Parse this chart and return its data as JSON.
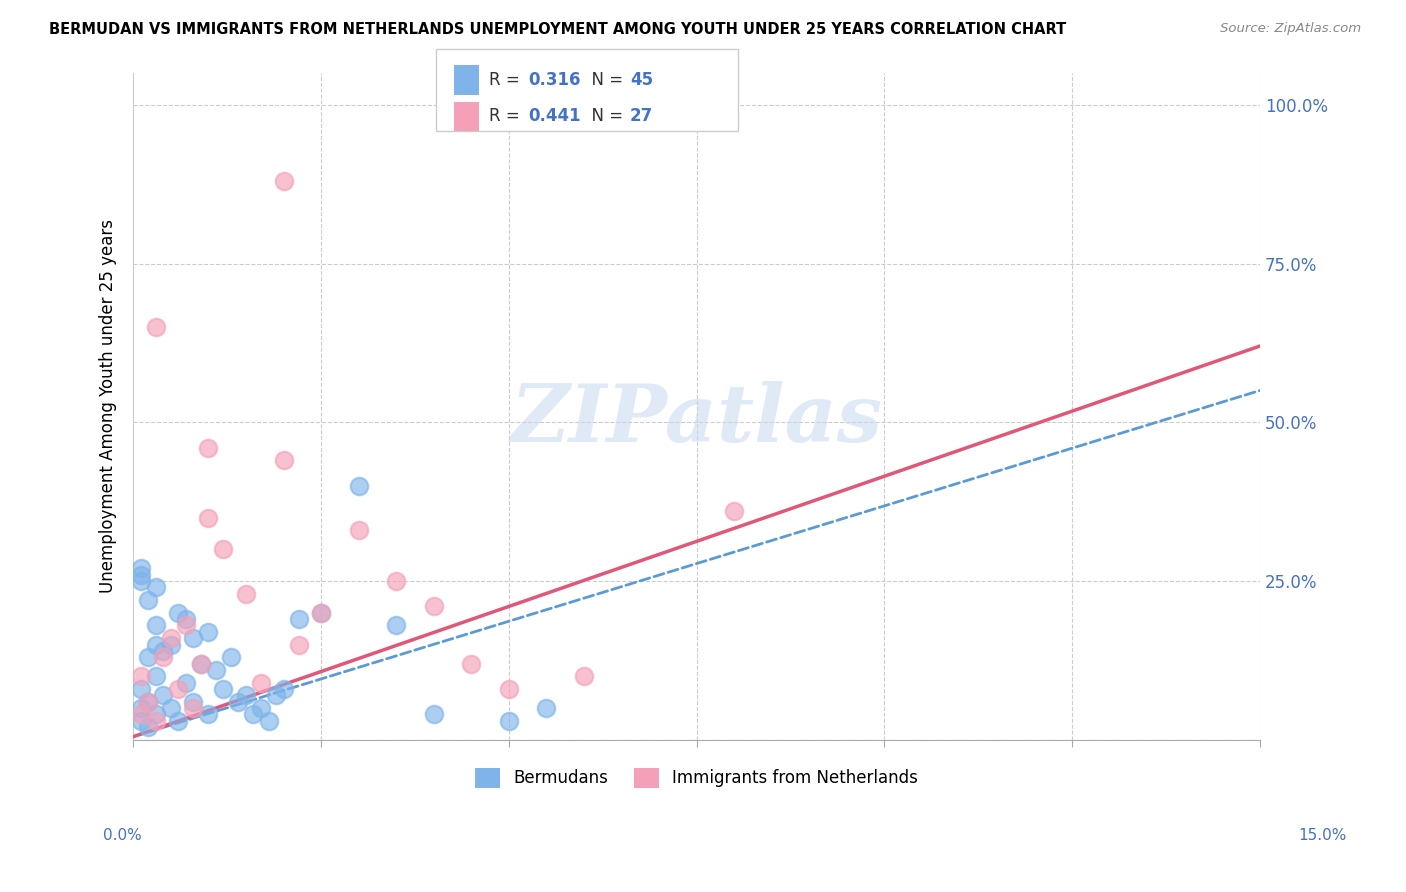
{
  "title": "BERMUDAN VS IMMIGRANTS FROM NETHERLANDS UNEMPLOYMENT AMONG YOUTH UNDER 25 YEARS CORRELATION CHART",
  "source": "Source: ZipAtlas.com",
  "ylabel": "Unemployment Among Youth under 25 years",
  "x_range": [
    0.0,
    0.15
  ],
  "y_range": [
    0.0,
    1.05
  ],
  "R1": 0.316,
  "N1": 45,
  "R2": 0.441,
  "N2": 27,
  "blue_color": "#7EB4EA",
  "pink_color": "#F4A0B8",
  "blue_line_color": "#5B9BD5",
  "pink_line_color": "#E05878",
  "legend_label1": "Bermudans",
  "legend_label2": "Immigrants from Netherlands",
  "watermark_color": "#C8D8F0",
  "blue_x": [
    0.001,
    0.001,
    0.001,
    0.001,
    0.002,
    0.002,
    0.002,
    0.003,
    0.003,
    0.003,
    0.004,
    0.004,
    0.005,
    0.005,
    0.006,
    0.006,
    0.007,
    0.007,
    0.008,
    0.008,
    0.009,
    0.01,
    0.01,
    0.011,
    0.012,
    0.013,
    0.014,
    0.015,
    0.016,
    0.017,
    0.018,
    0.019,
    0.02,
    0.022,
    0.025,
    0.001,
    0.001,
    0.002,
    0.003,
    0.003,
    0.03,
    0.035,
    0.04,
    0.05,
    0.055
  ],
  "blue_y": [
    0.03,
    0.05,
    0.08,
    0.26,
    0.02,
    0.06,
    0.13,
    0.04,
    0.1,
    0.18,
    0.07,
    0.14,
    0.05,
    0.15,
    0.03,
    0.2,
    0.09,
    0.19,
    0.06,
    0.16,
    0.12,
    0.04,
    0.17,
    0.11,
    0.08,
    0.13,
    0.06,
    0.07,
    0.04,
    0.05,
    0.03,
    0.07,
    0.08,
    0.19,
    0.2,
    0.25,
    0.27,
    0.22,
    0.15,
    0.24,
    0.4,
    0.18,
    0.04,
    0.03,
    0.05
  ],
  "pink_x": [
    0.001,
    0.001,
    0.002,
    0.003,
    0.003,
    0.004,
    0.005,
    0.006,
    0.007,
    0.008,
    0.009,
    0.01,
    0.012,
    0.015,
    0.017,
    0.02,
    0.022,
    0.025,
    0.03,
    0.035,
    0.04,
    0.045,
    0.05,
    0.06,
    0.08,
    0.01,
    0.02
  ],
  "pink_y": [
    0.04,
    0.1,
    0.06,
    0.03,
    0.65,
    0.13,
    0.16,
    0.08,
    0.18,
    0.05,
    0.12,
    0.35,
    0.3,
    0.23,
    0.09,
    0.44,
    0.15,
    0.2,
    0.33,
    0.25,
    0.21,
    0.12,
    0.08,
    0.1,
    0.36,
    0.46,
    0.88
  ],
  "line1_x": [
    0.0,
    0.15
  ],
  "line1_y": [
    0.005,
    0.55
  ],
  "line2_x": [
    0.0,
    0.15
  ],
  "line2_y": [
    0.005,
    0.62
  ]
}
